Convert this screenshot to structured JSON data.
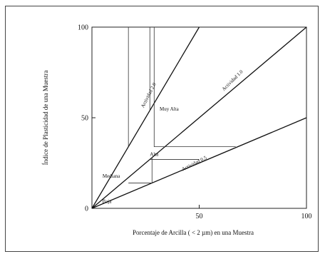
{
  "chart_data": {
    "type": "line",
    "title": "",
    "xlabel": "Porcentaje de Arcilla ( < 2 µm) en una Muestra",
    "ylabel": "Índice de Plasticidad de una Muestra",
    "xlim": [
      0,
      100
    ],
    "ylim": [
      0,
      100
    ],
    "x_ticks": [
      "50",
      "100"
    ],
    "y_ticks": [
      "0",
      "50",
      "100"
    ],
    "grid": false,
    "lines": [
      {
        "name": "Actividad 2.0",
        "points": [
          [
            0,
            0
          ],
          [
            50,
            100
          ]
        ]
      },
      {
        "name": "Actividad 1.0",
        "points": [
          [
            0,
            0
          ],
          [
            100,
            100
          ]
        ]
      },
      {
        "name": "Actividad 0.5",
        "points": [
          [
            0,
            0
          ],
          [
            100,
            50
          ]
        ]
      }
    ],
    "boundaries": [
      {
        "points": [
          [
            17,
            34
          ],
          [
            17,
            100
          ]
        ]
      },
      {
        "points": [
          [
            27,
            54
          ],
          [
            27,
            100
          ]
        ]
      },
      {
        "points": [
          [
            28,
            28
          ],
          [
            28,
            14
          ],
          [
            17,
            14
          ]
        ]
      },
      {
        "points": [
          [
            27,
            27
          ],
          [
            50,
            27
          ]
        ]
      },
      {
        "points": [
          [
            29,
            100
          ],
          [
            29,
            34
          ],
          [
            67,
            34
          ]
        ]
      }
    ],
    "annotations": [
      {
        "text": "Actividad 2.0",
        "x": 27,
        "y": 62,
        "rotate": -63
      },
      {
        "text": "Actividad 1.0",
        "x": 66,
        "y": 70,
        "rotate": -45
      },
      {
        "text": "Actividad 0.5",
        "x": 48,
        "y": 24,
        "rotate": -27
      },
      {
        "text": "Muy Alta",
        "x": 36,
        "y": 54,
        "rotate": 0
      },
      {
        "text": "Alta",
        "x": 29,
        "y": 29,
        "rotate": 0
      },
      {
        "text": "Mediana",
        "x": 9,
        "y": 17,
        "rotate": 0
      },
      {
        "text": "Baja",
        "x": 7,
        "y": 3,
        "rotate": 0
      }
    ]
  }
}
